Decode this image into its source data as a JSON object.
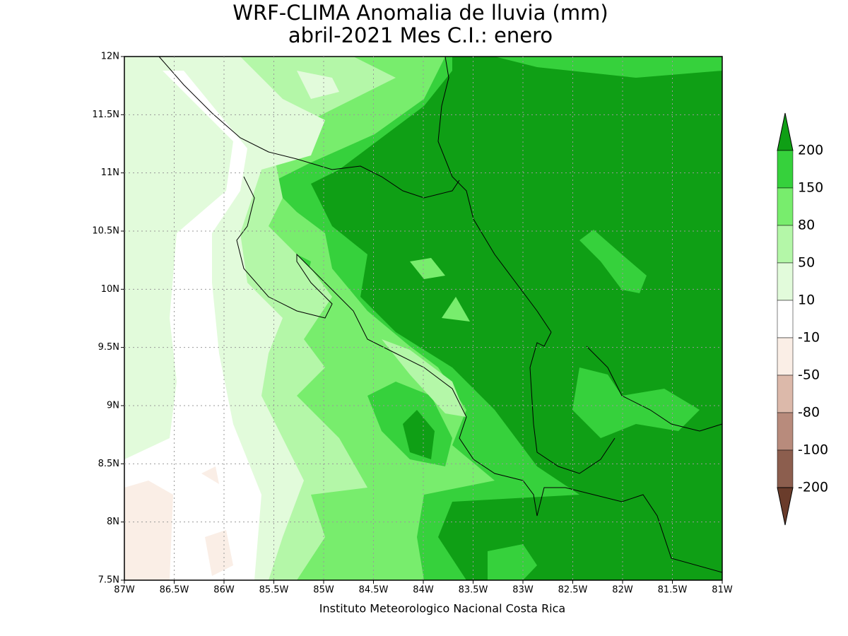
{
  "title": [
    "WRF-CLIMA Anomalia de lluvia (mm)",
    "abril-2021 Mes C.I.: enero"
  ],
  "map": {
    "lat_ticks": [
      "12N",
      "11.5N",
      "11N",
      "10.5N",
      "10N",
      "9.5N",
      "9N",
      "8.5N",
      "8N",
      "7.5N"
    ],
    "lon_ticks": [
      "87W",
      "86.5W",
      "86W",
      "85.5W",
      "85W",
      "84.5W",
      "84W",
      "83.5W",
      "83W",
      "82.5W",
      "82W",
      "81.5W",
      "81W"
    ],
    "footer": "Instituto Meteorologico Nacional Costa Rica"
  },
  "colorbar": {
    "levels": [
      200,
      150,
      80,
      50,
      10,
      -10,
      -50,
      -80,
      -100,
      -200
    ],
    "colors": [
      "#0f9f15",
      "#36d13c",
      "#78ed6d",
      "#b4f7a8",
      "#e2fbdb",
      "#ffffff",
      "#faeee6",
      "#dcb9aa",
      "#b88b7c",
      "#8c5e4e",
      "#6a3c2b"
    ]
  }
}
